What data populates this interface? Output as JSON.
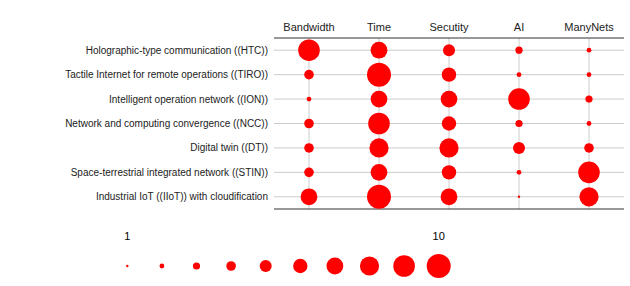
{
  "chart_data": {
    "type": "bubble",
    "categories": [
      "Bandwidth",
      "Time",
      "Secutity",
      "AI",
      "ManyNets"
    ],
    "rows": [
      "Holographic-type communication ((HTC))",
      "Tactile Internet for remote operations ((TIRO))",
      "Intelligent operation network ((ION))",
      "Network and computing convergence ((NCC))",
      "Digital twin ((DT))",
      "Space-terrestrial integrated network ((STIN))",
      "Industrial IoT ((IIoT)) with cloudification"
    ],
    "values": [
      [
        9,
        7,
        5,
        3,
        2
      ],
      [
        4,
        10,
        6,
        2,
        2
      ],
      [
        2,
        7,
        7,
        9,
        3
      ],
      [
        4,
        9,
        6,
        3,
        2
      ],
      [
        4,
        8,
        8,
        5,
        4
      ],
      [
        4,
        7,
        6,
        2,
        9
      ],
      [
        7,
        10,
        7,
        1,
        8
      ]
    ],
    "color": "#FF0000",
    "grid": true,
    "size_legend": [
      1,
      2,
      3,
      4,
      5,
      6,
      7,
      8,
      9,
      10
    ],
    "size_legend_ticks": [
      1,
      10
    ]
  }
}
